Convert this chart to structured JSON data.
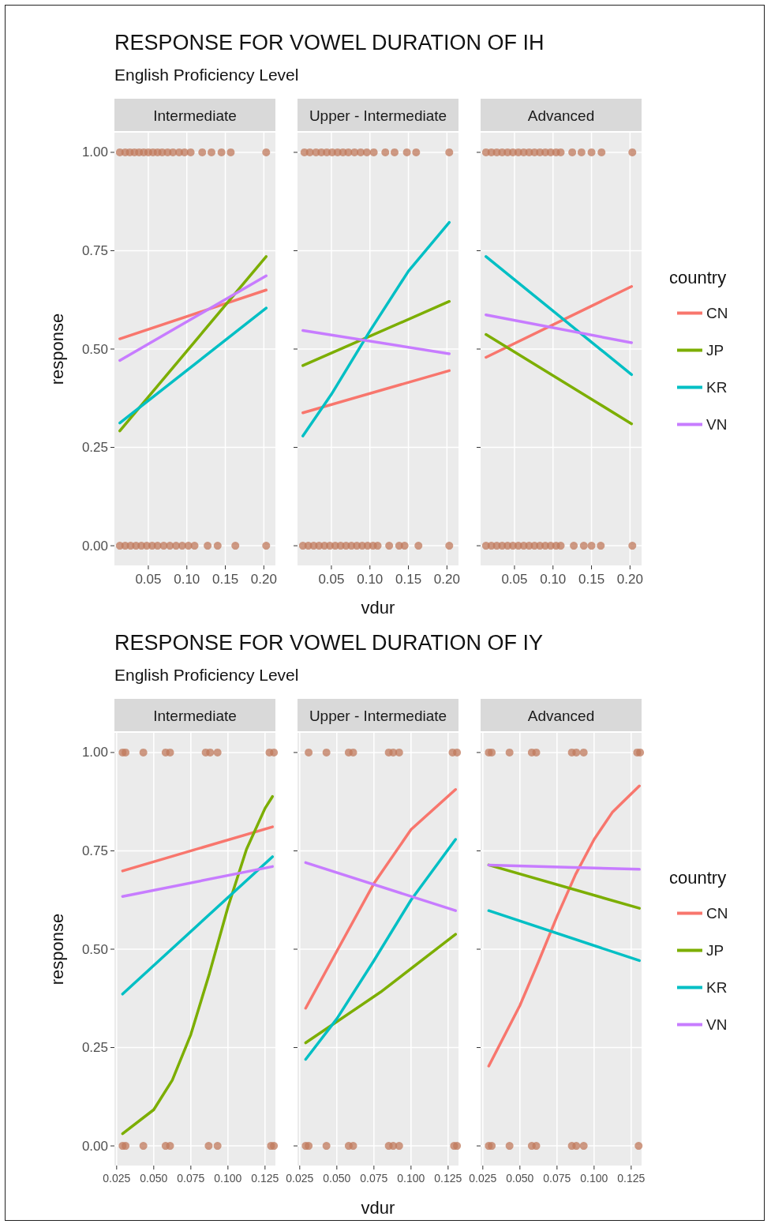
{
  "chart_data": [
    {
      "type": "line",
      "title": "RESPONSE FOR VOWEL DURATION OF IH",
      "subtitle": "English Proficiency Level",
      "annotations": [
        "Intermediate"
      ],
      "ylabel": "response",
      "xlim": [
        0.006,
        0.215
      ],
      "ylim": [
        -0.05,
        1.05
      ],
      "xticks": [
        0.05,
        {
          "value": 0.1,
          "label": "0.10"
        },
        0.15,
        {
          "value": 0.2,
          "label": "0.20"
        }
      ],
      "yticks": [
        {
          "value": 0,
          "label": "0.00"
        },
        0.25,
        {
          "value": 0.5,
          "label": "0.50"
        },
        0.75,
        {
          "value": 1,
          "label": "1.00"
        }
      ],
      "grid": true,
      "marker": "none",
      "line_style": "solid",
      "series": [
        {
          "type": "scatter",
          "marker": "circle",
          "color": "#c0795c",
          "x": [
            0.013,
            0.02,
            0.026,
            0.032,
            0.038,
            0.044,
            0.05,
            0.056,
            0.062,
            0.068,
            0.075,
            0.082,
            0.09,
            0.097,
            0.105,
            0.12,
            0.132,
            0.145,
            0.157,
            0.203,
            0.013,
            0.02,
            0.027,
            0.034,
            0.041,
            0.048,
            0.055,
            0.062,
            0.07,
            0.078,
            0.086,
            0.094,
            0.102,
            0.11,
            0.127,
            0.14,
            0.163,
            0.203
          ],
          "values": [
            1,
            1,
            1,
            1,
            1,
            1,
            1,
            1,
            1,
            1,
            1,
            1,
            1,
            1,
            1,
            1,
            1,
            1,
            1,
            1,
            0,
            0,
            0,
            0,
            0,
            0,
            0,
            0,
            0,
            0,
            0,
            0,
            0,
            0,
            0,
            0,
            0,
            0
          ]
        },
        {
          "color": "#f8766d",
          "x": [
            0.013,
            0.203
          ],
          "values": [
            0.526,
            0.65
          ]
        },
        {
          "color": "#7cae00",
          "x": [
            0.013,
            0.203
          ],
          "values": [
            0.292,
            0.735
          ]
        },
        {
          "color": "#00bfc4",
          "x": [
            0.013,
            0.203
          ],
          "values": [
            0.312,
            0.604
          ]
        },
        {
          "color": "#c77cff",
          "x": [
            0.013,
            0.203
          ],
          "values": [
            0.471,
            0.686
          ]
        }
      ]
    },
    {
      "type": "line",
      "annotations": [
        "Upper - Intermediate"
      ],
      "xlabel": "vdur",
      "xlim": [
        0.006,
        0.215
      ],
      "ylim": [
        -0.05,
        1.05
      ],
      "xticks": [
        0.05,
        {
          "value": 0.1,
          "label": "0.10"
        },
        0.15,
        {
          "value": 0.2,
          "label": "0.20"
        }
      ],
      "yticks": [
        0,
        0.25,
        0.5,
        0.75,
        1
      ],
      "tick_labels": "x",
      "grid": true,
      "marker": "none",
      "line_style": "solid",
      "series": [
        {
          "type": "scatter",
          "marker": "circle",
          "color": "#c0795c",
          "x": [
            0.015,
            0.022,
            0.03,
            0.037,
            0.044,
            0.051,
            0.058,
            0.065,
            0.072,
            0.08,
            0.088,
            0.096,
            0.105,
            0.12,
            0.132,
            0.148,
            0.16,
            0.203,
            0.013,
            0.02,
            0.027,
            0.034,
            0.041,
            0.048,
            0.055,
            0.062,
            0.069,
            0.076,
            0.083,
            0.09,
            0.097,
            0.104,
            0.11,
            0.125,
            0.138,
            0.145,
            0.163,
            0.203
          ],
          "values": [
            1,
            1,
            1,
            1,
            1,
            1,
            1,
            1,
            1,
            1,
            1,
            1,
            1,
            1,
            1,
            1,
            1,
            1,
            0,
            0,
            0,
            0,
            0,
            0,
            0,
            0,
            0,
            0,
            0,
            0,
            0,
            0,
            0,
            0,
            0,
            0,
            0,
            0
          ]
        },
        {
          "color": "#f8766d",
          "x": [
            0.013,
            0.203
          ],
          "values": [
            0.338,
            0.445
          ]
        },
        {
          "color": "#7cae00",
          "x": [
            0.013,
            0.203
          ],
          "values": [
            0.458,
            0.621
          ]
        },
        {
          "color": "#00bfc4",
          "x": [
            0.013,
            0.05,
            0.1,
            0.15,
            0.203
          ],
          "values": [
            0.279,
            0.385,
            0.546,
            0.698,
            0.822
          ]
        },
        {
          "color": "#c77cff",
          "x": [
            0.013,
            0.203
          ],
          "values": [
            0.547,
            0.488
          ]
        }
      ]
    },
    {
      "type": "line",
      "annotations": [
        "Advanced"
      ],
      "legend": "right",
      "legend_title": "country",
      "xlim": [
        0.006,
        0.215
      ],
      "ylim": [
        -0.05,
        1.05
      ],
      "xticks": [
        0.05,
        {
          "value": 0.1,
          "label": "0.10"
        },
        0.15,
        {
          "value": 0.2,
          "label": "0.20"
        }
      ],
      "yticks": [
        0,
        0.25,
        0.5,
        0.75,
        1
      ],
      "tick_labels": "x",
      "grid": true,
      "marker": "none",
      "line_style": "solid",
      "series": [
        {
          "type": "scatter",
          "marker": "circle",
          "color": "#c0795c",
          "x": [
            0.013,
            0.02,
            0.027,
            0.034,
            0.041,
            0.048,
            0.055,
            0.062,
            0.069,
            0.076,
            0.083,
            0.09,
            0.097,
            0.104,
            0.11,
            0.125,
            0.137,
            0.15,
            0.163,
            0.203,
            0.013,
            0.02,
            0.027,
            0.034,
            0.041,
            0.048,
            0.055,
            0.062,
            0.069,
            0.076,
            0.083,
            0.09,
            0.097,
            0.104,
            0.11,
            0.127,
            0.14,
            0.15,
            0.162,
            0.203
          ],
          "values": [
            1,
            1,
            1,
            1,
            1,
            1,
            1,
            1,
            1,
            1,
            1,
            1,
            1,
            1,
            1,
            1,
            1,
            1,
            1,
            1,
            0,
            0,
            0,
            0,
            0,
            0,
            0,
            0,
            0,
            0,
            0,
            0,
            0,
            0,
            0,
            0,
            0,
            0,
            0,
            0
          ]
        },
        {
          "name": "CN",
          "color": "#f8766d",
          "x": [
            0.013,
            0.202
          ],
          "values": [
            0.479,
            0.659
          ]
        },
        {
          "name": "JP",
          "color": "#7cae00",
          "x": [
            0.013,
            0.202
          ],
          "values": [
            0.537,
            0.31
          ]
        },
        {
          "name": "KR",
          "color": "#00bfc4",
          "x": [
            0.013,
            0.202
          ],
          "values": [
            0.735,
            0.435
          ]
        },
        {
          "name": "VN",
          "color": "#c77cff",
          "x": [
            0.013,
            0.202
          ],
          "values": [
            0.587,
            0.516
          ]
        }
      ]
    },
    {
      "type": "line",
      "title": "RESPONSE FOR VOWEL DURATION OF IY",
      "subtitle": "English Proficiency Level",
      "annotations": [
        "Intermediate"
      ],
      "ylabel": "response",
      "xlim": [
        0.0235,
        0.132
      ],
      "ylim": [
        -0.05,
        1.05
      ],
      "xticks": [
        0.025,
        {
          "value": 0.05,
          "label": "0.050"
        },
        0.075,
        {
          "value": 0.1,
          "label": "0.100"
        },
        0.125
      ],
      "yticks": [
        {
          "value": 0,
          "label": "0.00"
        },
        0.25,
        {
          "value": 0.5,
          "label": "0.50"
        },
        0.75,
        {
          "value": 1,
          "label": "1.00"
        }
      ],
      "grid": true,
      "marker": "none",
      "line_style": "solid",
      "series": [
        {
          "type": "scatter",
          "marker": "circle",
          "color": "#c0795c",
          "x": [
            0.029,
            0.031,
            0.043,
            0.058,
            0.061,
            0.085,
            0.088,
            0.093,
            0.128,
            0.131,
            0.029,
            0.031,
            0.043,
            0.058,
            0.061,
            0.087,
            0.093,
            0.129,
            0.131
          ],
          "values": [
            1,
            1,
            1,
            1,
            1,
            1,
            1,
            1,
            1,
            1,
            0,
            0,
            0,
            0,
            0,
            0,
            0,
            0,
            0
          ]
        },
        {
          "color": "#f8766d",
          "x": [
            0.029,
            0.13
          ],
          "values": [
            0.699,
            0.811
          ]
        },
        {
          "color": "#7cae00",
          "x": [
            0.029,
            0.05,
            0.0625,
            0.075,
            0.0875,
            0.1,
            0.1125,
            0.125,
            0.13
          ],
          "values": [
            0.031,
            0.092,
            0.167,
            0.283,
            0.438,
            0.607,
            0.754,
            0.858,
            0.888
          ]
        },
        {
          "color": "#00bfc4",
          "x": [
            0.029,
            0.13
          ],
          "values": [
            0.386,
            0.735
          ]
        },
        {
          "color": "#c77cff",
          "x": [
            0.029,
            0.13
          ],
          "values": [
            0.634,
            0.71
          ]
        }
      ]
    },
    {
      "type": "line",
      "annotations": [
        "Upper - Intermediate"
      ],
      "xlabel": "vdur",
      "xlim": [
        0.0235,
        0.132
      ],
      "ylim": [
        -0.05,
        1.05
      ],
      "xticks": [
        0.025,
        {
          "value": 0.05,
          "label": "0.050"
        },
        0.075,
        {
          "value": 0.1,
          "label": "0.100"
        },
        0.125
      ],
      "yticks": [
        0,
        0.25,
        0.5,
        0.75,
        1
      ],
      "tick_labels": "x",
      "grid": true,
      "marker": "none",
      "line_style": "solid",
      "series": [
        {
          "type": "scatter",
          "marker": "circle",
          "color": "#c0795c",
          "x": [
            0.031,
            0.043,
            0.058,
            0.061,
            0.085,
            0.088,
            0.092,
            0.128,
            0.131,
            0.029,
            0.031,
            0.043,
            0.058,
            0.061,
            0.085,
            0.088,
            0.092,
            0.129,
            0.131
          ],
          "values": [
            1,
            1,
            1,
            1,
            1,
            1,
            1,
            1,
            1,
            0,
            0,
            0,
            0,
            0,
            0,
            0,
            0,
            0,
            0
          ]
        },
        {
          "color": "#f8766d",
          "x": [
            0.029,
            0.05,
            0.075,
            0.1,
            0.13
          ],
          "values": [
            0.35,
            0.495,
            0.667,
            0.804,
            0.906
          ]
        },
        {
          "color": "#7cae00",
          "x": [
            0.029,
            0.0795,
            0.13
          ],
          "values": [
            0.262,
            0.391,
            0.538
          ]
        },
        {
          "color": "#00bfc4",
          "x": [
            0.029,
            0.05,
            0.075,
            0.1,
            0.13
          ],
          "values": [
            0.22,
            0.323,
            0.471,
            0.625,
            0.779
          ]
        },
        {
          "color": "#c77cff",
          "x": [
            0.029,
            0.13
          ],
          "values": [
            0.72,
            0.598
          ]
        }
      ]
    },
    {
      "type": "line",
      "annotations": [
        "Advanced"
      ],
      "legend": "right",
      "legend_title": "country",
      "xlim": [
        0.0235,
        0.132
      ],
      "ylim": [
        -0.05,
        1.05
      ],
      "xticks": [
        0.025,
        {
          "value": 0.05,
          "label": "0.050"
        },
        0.075,
        {
          "value": 0.1,
          "label": "0.100"
        },
        0.125
      ],
      "yticks": [
        0,
        0.25,
        0.5,
        0.75,
        1
      ],
      "tick_labels": "x",
      "grid": true,
      "marker": "none",
      "line_style": "solid",
      "series": [
        {
          "type": "scatter",
          "marker": "circle",
          "color": "#c0795c",
          "x": [
            0.029,
            0.031,
            0.043,
            0.058,
            0.061,
            0.085,
            0.088,
            0.093,
            0.129,
            0.131,
            0.029,
            0.031,
            0.043,
            0.058,
            0.061,
            0.085,
            0.088,
            0.093,
            0.13
          ],
          "values": [
            1,
            1,
            1,
            1,
            1,
            1,
            1,
            1,
            1,
            1,
            0,
            0,
            0,
            0,
            0,
            0,
            0,
            0,
            0
          ]
        },
        {
          "name": "CN",
          "color": "#f8766d",
          "x": [
            0.029,
            0.05,
            0.0625,
            0.075,
            0.0875,
            0.1,
            0.1125,
            0.1305
          ],
          "values": [
            0.203,
            0.357,
            0.468,
            0.583,
            0.69,
            0.779,
            0.849,
            0.915
          ]
        },
        {
          "name": "JP",
          "color": "#7cae00",
          "x": [
            0.029,
            0.1305
          ],
          "values": [
            0.714,
            0.604
          ]
        },
        {
          "name": "KR",
          "color": "#00bfc4",
          "x": [
            0.029,
            0.1305
          ],
          "values": [
            0.598,
            0.471
          ]
        },
        {
          "name": "VN",
          "color": "#c77cff",
          "x": [
            0.029,
            0.1305
          ],
          "values": [
            0.714,
            0.703
          ]
        }
      ]
    }
  ]
}
